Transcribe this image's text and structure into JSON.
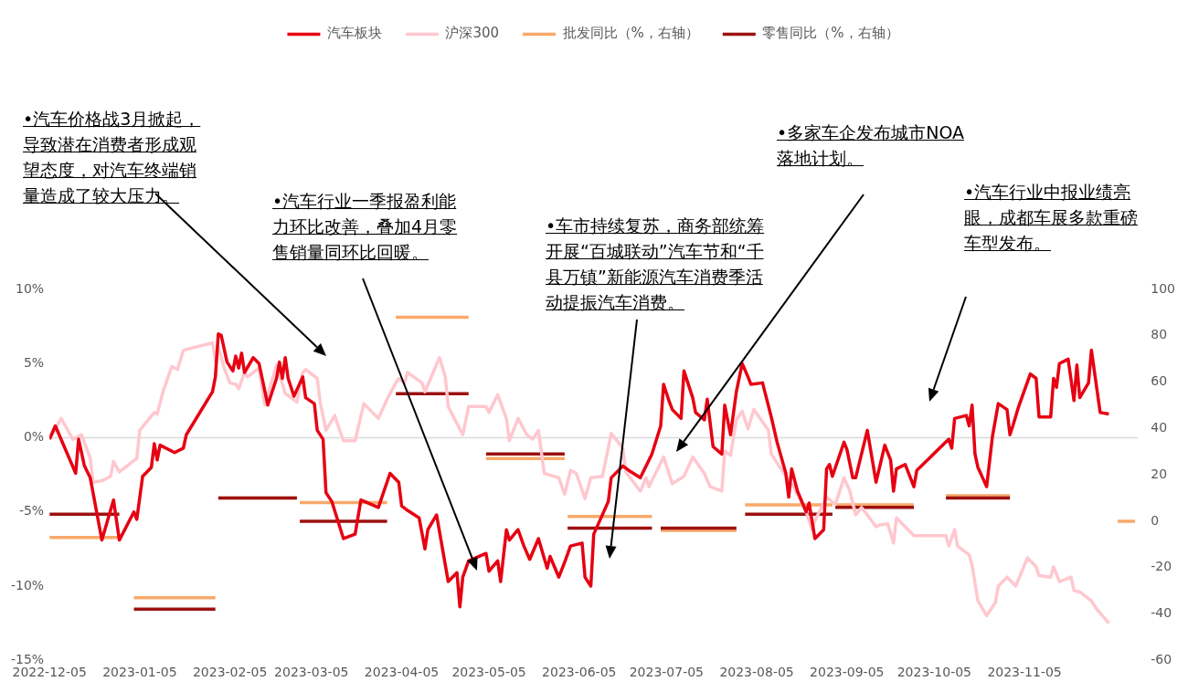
{
  "chart_data": {
    "type": "line",
    "legend": "top",
    "grid": false,
    "marker": "none",
    "xlim": [
      "2022-12-05",
      "2023-12-14"
    ],
    "xticks": [
      "2022-12-05",
      "2023-01-05",
      "2023-02-05",
      "2023-03-05",
      "2023-04-05",
      "2023-05-05",
      "2023-06-05",
      "2023-07-05",
      "2023-08-05",
      "2023-09-05",
      "2023-10-05",
      "2023-11-05"
    ],
    "ylim": [
      -15,
      10
    ],
    "yticks": [
      {
        "value": -15,
        "label": "-15%"
      },
      {
        "value": -10,
        "label": "-10%"
      },
      {
        "value": -5,
        "label": "-5%"
      },
      {
        "value": 0,
        "label": "0%"
      },
      {
        "value": 5,
        "label": "5%"
      },
      {
        "value": 10,
        "label": "10%"
      }
    ],
    "y2lim": [
      -60,
      100
    ],
    "y2ticks": [
      -60,
      -40,
      -20,
      0,
      20,
      40,
      60,
      80,
      100
    ],
    "ref_lines": [
      {
        "axis": "y",
        "value": 0,
        "color": "#d9d9d9"
      }
    ],
    "series": [
      {
        "name": "汽车板块",
        "color": "#e60012",
        "x": [
          "2022-12-05",
          "2022-12-07",
          "2022-12-14",
          "2022-12-15",
          "2022-12-17",
          "2022-12-19",
          "2022-12-23",
          "2022-12-27",
          "2022-12-29",
          "2023-01-03",
          "2023-01-04",
          "2023-01-06",
          "2023-01-09",
          "2023-01-10",
          "2023-01-11",
          "2023-01-12",
          "2023-01-17",
          "2023-01-20",
          "2023-01-21",
          "2023-01-30",
          "2023-01-31",
          "2023-02-01",
          "2023-02-02",
          "2023-02-04",
          "2023-02-06",
          "2023-02-07",
          "2023-02-08",
          "2023-02-09",
          "2023-02-10",
          "2023-02-13",
          "2023-02-15",
          "2023-02-18",
          "2023-02-21",
          "2023-02-22",
          "2023-02-23",
          "2023-02-24",
          "2023-02-25",
          "2023-02-27",
          "2023-03-02",
          "2023-03-03",
          "2023-03-06",
          "2023-03-07",
          "2023-03-09",
          "2023-03-10",
          "2023-03-12",
          "2023-03-16",
          "2023-03-20",
          "2023-03-22",
          "2023-03-28",
          "2023-04-01",
          "2023-04-04",
          "2023-04-05",
          "2023-04-07",
          "2023-04-11",
          "2023-04-13",
          "2023-04-14",
          "2023-04-17",
          "2023-04-21",
          "2023-04-24",
          "2023-04-25",
          "2023-04-26",
          "2023-04-28",
          "2023-05-04",
          "2023-05-05",
          "2023-05-08",
          "2023-05-09",
          "2023-05-11",
          "2023-05-12",
          "2023-05-15",
          "2023-05-17",
          "2023-05-19",
          "2023-05-22",
          "2023-05-25",
          "2023-05-26",
          "2023-05-29",
          "2023-05-31",
          "2023-06-02",
          "2023-06-06",
          "2023-06-07",
          "2023-06-09",
          "2023-06-10",
          "2023-06-15",
          "2023-06-16",
          "2023-06-20",
          "2023-06-22",
          "2023-06-26",
          "2023-06-30",
          "2023-07-03",
          "2023-07-04",
          "2023-07-06",
          "2023-07-07",
          "2023-07-10",
          "2023-07-11",
          "2023-07-14",
          "2023-07-15",
          "2023-07-18",
          "2023-07-19",
          "2023-07-21",
          "2023-07-24",
          "2023-07-25",
          "2023-07-27",
          "2023-07-29",
          "2023-07-31",
          "2023-08-02",
          "2023-08-03",
          "2023-08-07",
          "2023-08-10",
          "2023-08-12",
          "2023-08-15",
          "2023-08-16",
          "2023-08-17",
          "2023-08-19",
          "2023-08-22",
          "2023-08-23",
          "2023-08-25",
          "2023-08-28",
          "2023-08-29",
          "2023-08-30",
          "2023-08-31",
          "2023-09-04",
          "2023-09-05",
          "2023-09-07",
          "2023-09-08",
          "2023-09-12",
          "2023-09-15",
          "2023-09-18",
          "2023-09-20",
          "2023-09-21",
          "2023-09-22",
          "2023-09-25",
          "2023-09-28",
          "2023-09-29",
          "2023-10-10",
          "2023-10-11",
          "2023-10-12",
          "2023-10-16",
          "2023-10-17",
          "2023-10-18",
          "2023-10-19",
          "2023-10-20",
          "2023-10-23",
          "2023-10-25",
          "2023-10-27",
          "2023-10-30",
          "2023-10-31",
          "2023-11-01",
          "2023-11-03",
          "2023-11-07",
          "2023-11-09",
          "2023-11-10",
          "2023-11-14",
          "2023-11-15",
          "2023-11-16",
          "2023-11-17",
          "2023-11-20",
          "2023-11-22",
          "2023-11-23",
          "2023-11-24",
          "2023-11-27",
          "2023-11-28",
          "2023-12-01",
          "2023-12-04"
        ],
        "values": [
          -0.1,
          0.8,
          -2.4,
          -0.1,
          -1.9,
          -2.7,
          -6.9,
          -4.2,
          -6.9,
          -5.0,
          -5.5,
          -2.6,
          -2.0,
          -0.4,
          -1.5,
          -0.5,
          -1.0,
          -0.7,
          0.2,
          3.1,
          4.1,
          7.0,
          6.9,
          5.1,
          4.5,
          5.5,
          4.7,
          5.7,
          4.4,
          5.4,
          5.0,
          2.2,
          4.0,
          5.1,
          4.0,
          5.4,
          4.0,
          2.8,
          4.1,
          2.7,
          2.3,
          0.5,
          -0.1,
          -3.7,
          -4.3,
          -6.8,
          -6.5,
          -4.2,
          -4.7,
          -2.4,
          -3.0,
          -4.6,
          -4.9,
          -5.4,
          -7.5,
          -6.2,
          -5.2,
          -9.7,
          -9.1,
          -11.4,
          -9.4,
          -8.3,
          -7.8,
          -9.0,
          -8.3,
          -9.7,
          -6.2,
          -6.9,
          -6.2,
          -7.3,
          -8.2,
          -6.8,
          -8.8,
          -8.0,
          -9.4,
          -8.4,
          -7.3,
          -7.1,
          -9.4,
          -10.0,
          -6.5,
          -4.3,
          -2.7,
          -1.9,
          -2.2,
          -2.7,
          -1.1,
          0.8,
          3.6,
          2.4,
          1.9,
          1.3,
          4.5,
          2.7,
          1.7,
          1.2,
          2.6,
          -0.6,
          -1.1,
          2.2,
          0.2,
          3.1,
          5.0,
          4.1,
          3.6,
          3.7,
          1.4,
          -0.3,
          -2.4,
          -4.0,
          -2.1,
          -3.6,
          -5.0,
          -4.4,
          -6.8,
          -6.2,
          -2.1,
          -1.8,
          -2.6,
          -0.3,
          -0.8,
          -2.7,
          -2.7,
          0.5,
          -3.0,
          -0.5,
          -1.5,
          -3.6,
          -2.1,
          -1.8,
          -3.3,
          -2.2,
          -0.1,
          -0.7,
          1.3,
          1.5,
          0.8,
          2.2,
          -1.1,
          -2.0,
          -3.3,
          0.1,
          2.3,
          1.9,
          0.2,
          0.8,
          2.1,
          4.3,
          4.0,
          1.4,
          1.4,
          4.0,
          3.4,
          5.0,
          5.3,
          2.5,
          4.9,
          2.7,
          3.7,
          5.9,
          1.7,
          1.6
        ]
      },
      {
        "name": "沪深300",
        "color": "#ffc7ce",
        "x": [
          "2022-12-05",
          "2022-12-09",
          "2022-12-13",
          "2022-12-16",
          "2022-12-19",
          "2022-12-20",
          "2022-12-23",
          "2022-12-26",
          "2022-12-27",
          "2022-12-29",
          "2023-01-04",
          "2023-01-05",
          "2023-01-10",
          "2023-01-11",
          "2023-01-13",
          "2023-01-16",
          "2023-01-18",
          "2023-01-20",
          "2023-01-30",
          "2023-01-31",
          "2023-02-01",
          "2023-02-03",
          "2023-02-05",
          "2023-02-07",
          "2023-02-08",
          "2023-02-10",
          "2023-02-11",
          "2023-02-15",
          "2023-02-17",
          "2023-02-21",
          "2023-02-24",
          "2023-02-28",
          "2023-03-02",
          "2023-03-03",
          "2023-03-07",
          "2023-03-08",
          "2023-03-10",
          "2023-03-13",
          "2023-03-14",
          "2023-03-16",
          "2023-03-20",
          "2023-03-23",
          "2023-03-28",
          "2023-03-31",
          "2023-04-03",
          "2023-04-04",
          "2023-04-06",
          "2023-04-07",
          "2023-04-12",
          "2023-04-13",
          "2023-04-18",
          "2023-04-20",
          "2023-04-21",
          "2023-04-26",
          "2023-04-28",
          "2023-05-04",
          "2023-05-05",
          "2023-05-08",
          "2023-05-11",
          "2023-05-12",
          "2023-05-15",
          "2023-05-18",
          "2023-05-20",
          "2023-05-22",
          "2023-05-24",
          "2023-05-29",
          "2023-05-31",
          "2023-06-02",
          "2023-06-04",
          "2023-06-07",
          "2023-06-09",
          "2023-06-13",
          "2023-06-16",
          "2023-06-20",
          "2023-06-21",
          "2023-06-26",
          "2023-06-28",
          "2023-06-29",
          "2023-07-04",
          "2023-07-07",
          "2023-07-11",
          "2023-07-14",
          "2023-07-18",
          "2023-07-20",
          "2023-07-24",
          "2023-07-25",
          "2023-07-27",
          "2023-07-29",
          "2023-07-31",
          "2023-08-02",
          "2023-08-04",
          "2023-08-09",
          "2023-08-10",
          "2023-08-15",
          "2023-08-18",
          "2023-08-22",
          "2023-08-24",
          "2023-08-25",
          "2023-08-29",
          "2023-09-01",
          "2023-09-04",
          "2023-09-06",
          "2023-09-08",
          "2023-09-10",
          "2023-09-12",
          "2023-09-15",
          "2023-09-16",
          "2023-09-19",
          "2023-09-21",
          "2023-09-22",
          "2023-09-26",
          "2023-09-28",
          "2023-10-09",
          "2023-10-10",
          "2023-10-12",
          "2023-10-13",
          "2023-10-17",
          "2023-10-18",
          "2023-10-20",
          "2023-10-23",
          "2023-10-26",
          "2023-10-27",
          "2023-10-30",
          "2023-11-02",
          "2023-11-06",
          "2023-11-09",
          "2023-11-10",
          "2023-11-14",
          "2023-11-15",
          "2023-11-17",
          "2023-11-21",
          "2023-11-22",
          "2023-11-24",
          "2023-11-28",
          "2023-11-30",
          "2023-12-04"
        ],
        "values": [
          -0.1,
          1.3,
          -0.1,
          0.2,
          -1.4,
          -3.0,
          -2.9,
          -2.6,
          -1.6,
          -2.3,
          -1.4,
          0.5,
          1.7,
          1.6,
          3.1,
          4.8,
          4.6,
          5.9,
          6.4,
          5.2,
          6.1,
          4.7,
          3.7,
          3.6,
          3.3,
          4.4,
          4.1,
          4.7,
          2.2,
          4.9,
          3.0,
          2.4,
          4.4,
          4.6,
          4.0,
          2.4,
          0.5,
          1.5,
          0.9,
          -0.2,
          -0.2,
          2.3,
          1.3,
          2.6,
          3.7,
          4.0,
          3.7,
          4.4,
          3.7,
          3.1,
          5.4,
          4.1,
          2.1,
          0.2,
          2.1,
          2.1,
          1.7,
          2.9,
          1.3,
          -0.2,
          1.3,
          0.2,
          -0.1,
          0.5,
          -2.4,
          -2.7,
          -3.8,
          -2.2,
          -2.4,
          -4.1,
          -2.7,
          -2.6,
          0.3,
          -0.7,
          -2.3,
          -3.6,
          -2.7,
          -3.3,
          -1.3,
          -3.1,
          -2.6,
          -1.3,
          -2.4,
          -3.3,
          -3.6,
          -0.9,
          -1.2,
          1.2,
          1.8,
          0.6,
          1.9,
          0.5,
          -1.1,
          -2.6,
          -3.4,
          -5.0,
          -6.2,
          -5.6,
          -4.0,
          -4.5,
          -2.7,
          -3.6,
          -5.2,
          -4.7,
          -5.2,
          -6.0,
          -5.9,
          -5.8,
          -7.1,
          -5.4,
          -6.2,
          -6.6,
          -6.6,
          -7.3,
          -6.2,
          -7.3,
          -7.9,
          -8.6,
          -11.0,
          -12.0,
          -11.1,
          -10.0,
          -9.4,
          -10.0,
          -8.1,
          -8.7,
          -9.3,
          -9.4,
          -8.7,
          -9.7,
          -9.4,
          -10.3,
          -10.4,
          -11.0,
          -11.6,
          -12.5
        ]
      },
      {
        "name": "批发同比（%，右轴）",
        "color": "#f8a96b",
        "axis": "y2",
        "x": [
          "2022-12-05",
          "2022-12-29",
          null,
          "2023-01-03",
          "2023-01-31",
          null,
          "2023-02-01",
          "2023-02-28",
          null,
          "2023-03-01",
          "2023-03-31",
          null,
          "2023-04-03",
          "2023-04-28",
          null,
          "2023-05-04",
          "2023-05-31",
          null,
          "2023-06-01",
          "2023-06-30",
          null,
          "2023-07-03",
          "2023-07-29",
          null,
          "2023-08-01",
          "2023-08-31",
          null,
          "2023-09-01",
          "2023-09-28",
          null,
          "2023-10-09",
          "2023-10-31",
          null,
          "2023-12-07",
          "2023-12-13"
        ],
        "values": [
          -7,
          -7,
          null,
          -33,
          -33,
          null,
          10,
          10,
          null,
          8,
          8,
          null,
          88,
          88,
          null,
          27,
          27,
          null,
          2,
          2,
          null,
          -4,
          -4,
          null,
          7,
          7,
          null,
          7,
          7,
          null,
          11,
          11,
          null,
          0,
          0
        ]
      },
      {
        "name": "零售同比（%，右轴）",
        "color": "#9c1010",
        "axis": "y2",
        "x": [
          "2022-12-05",
          "2022-12-29",
          null,
          "2023-01-03",
          "2023-01-31",
          null,
          "2023-02-01",
          "2023-02-28",
          null,
          "2023-03-01",
          "2023-03-31",
          null,
          "2023-04-03",
          "2023-04-28",
          null,
          "2023-05-04",
          "2023-05-31",
          null,
          "2023-06-01",
          "2023-06-30",
          null,
          "2023-07-03",
          "2023-07-29",
          null,
          "2023-08-01",
          "2023-08-31",
          null,
          "2023-09-01",
          "2023-09-28",
          null,
          "2023-10-09",
          "2023-10-31"
        ],
        "values": [
          3,
          3,
          null,
          -38,
          -38,
          null,
          10,
          10,
          null,
          0,
          0,
          null,
          55,
          55,
          null,
          29,
          29,
          null,
          -3,
          -3,
          null,
          -3,
          -3,
          null,
          3,
          3,
          null,
          6,
          6,
          null,
          10,
          10
        ]
      }
    ],
    "annotations": [
      "•汽车价格战3月掀起，导致潜在消费者形成观望态度，对汽车终端销量造成了较大压力。",
      "•汽车行业一季报盈利能力环比改善，叠加4月零售销量同环比回暖。",
      "•车市持续复苏，商务部统筹开展“百城联动”汽车节和“千县万镇”新能源汽车消费季活动提振汽车消费。",
      "•多家车企发布城市NOA落地计划。",
      "•汽车行业中报业绩亮眼，成都车展多款重磅车型发布。"
    ]
  }
}
